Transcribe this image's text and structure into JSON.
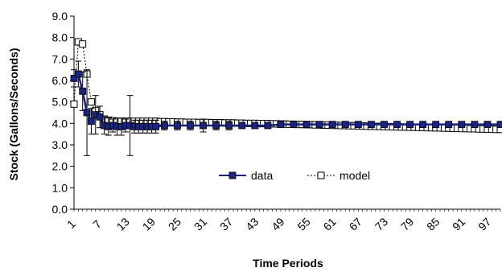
{
  "chart_data": {
    "type": "line",
    "title": "",
    "xlabel": "Time Periods",
    "ylabel": "Stock (Gallons/Seconds)",
    "ylim": [
      0,
      9
    ],
    "y_ticks": [
      "0.0",
      "1.0",
      "2.0",
      "3.0",
      "4.0",
      "5.0",
      "6.0",
      "7.0",
      "8.0",
      "9.0"
    ],
    "x_tick_labels": [
      "1",
      "7",
      "13",
      "19",
      "25",
      "31",
      "37",
      "43",
      "49",
      "55",
      "61",
      "67",
      "73",
      "79",
      "85",
      "91",
      "97"
    ],
    "x_range": [
      1,
      100
    ],
    "grid": false,
    "legend_position": "center",
    "series": [
      {
        "name": "data",
        "color": "#1a237e",
        "marker": "filled-square",
        "line_style": "solid",
        "x": [
          1,
          2,
          3,
          4,
          5,
          6,
          7,
          8,
          9,
          10,
          11,
          12,
          13,
          14,
          15,
          16,
          17,
          18,
          19,
          20,
          22,
          25,
          28,
          31,
          34,
          37,
          40,
          43,
          46,
          49,
          52,
          55,
          58,
          61,
          64,
          67,
          70,
          73,
          76,
          79,
          82,
          85,
          88,
          91,
          94,
          97,
          100
        ],
        "values": [
          6.1,
          6.3,
          5.5,
          4.5,
          4.1,
          4.4,
          4.3,
          3.9,
          3.85,
          3.9,
          3.85,
          3.85,
          3.9,
          3.9,
          3.85,
          3.85,
          3.85,
          3.85,
          3.85,
          3.85,
          3.9,
          3.9,
          3.9,
          3.9,
          3.9,
          3.9,
          3.9,
          3.9,
          3.9,
          3.95,
          3.95,
          3.95,
          3.95,
          3.95,
          3.95,
          3.95,
          3.95,
          3.95,
          3.95,
          3.95,
          3.95,
          3.95,
          3.95,
          3.95,
          3.95,
          3.95,
          3.95
        ],
        "error": [
          0.4,
          0.6,
          0.9,
          2.0,
          0.6,
          0.9,
          0.5,
          0.4,
          0.4,
          0.3,
          0.4,
          0.4,
          0.3,
          1.4,
          0.3,
          0.3,
          0.3,
          0.3,
          0.3,
          0.3,
          0.2,
          0.2,
          0.2,
          0.3,
          0.2,
          0.2,
          0.1,
          0.1,
          0.1,
          0.1,
          0.1,
          0.05,
          0.05,
          0.05,
          0.05,
          0.05,
          0.05,
          0.05,
          0.05,
          0.05,
          0.05,
          0.05,
          0.05,
          0.05,
          0.05,
          0.05,
          0.05
        ]
      },
      {
        "name": "model",
        "color": "#000000",
        "marker": "open-square",
        "line_style": "dashed",
        "x": [
          1,
          2,
          3,
          4,
          5,
          6,
          7,
          8,
          9,
          10,
          11,
          12,
          13,
          14,
          15,
          16,
          17,
          18,
          19,
          20,
          21,
          22,
          23,
          24,
          25,
          26,
          27,
          28,
          29,
          30,
          31,
          32,
          33,
          34,
          35,
          36,
          37,
          38,
          39,
          40,
          41,
          42,
          43,
          44,
          45,
          46,
          47,
          48,
          49,
          50,
          51,
          52,
          53,
          54,
          55,
          56,
          57,
          58,
          59,
          60,
          61,
          62,
          63,
          64,
          65,
          66,
          67,
          68,
          69,
          70,
          71,
          72,
          73,
          74,
          75,
          76,
          77,
          78,
          79,
          80,
          81,
          82,
          83,
          84,
          85,
          86,
          87,
          88,
          89,
          90,
          91,
          92,
          93,
          94,
          95,
          96,
          97,
          98,
          99,
          100
        ],
        "values": [
          4.9,
          7.8,
          7.7,
          6.3,
          5.0,
          4.6,
          4.4,
          4.2,
          4.15,
          4.12,
          4.1,
          4.1,
          4.1,
          4.1,
          4.1,
          4.1,
          4.1,
          4.1,
          4.1,
          4.1,
          4.08,
          4.08,
          4.07,
          4.07,
          4.06,
          4.06,
          4.05,
          4.05,
          4.05,
          4.04,
          4.04,
          4.04,
          4.03,
          4.03,
          4.03,
          4.02,
          4.02,
          4.02,
          4.01,
          4.01,
          4.0,
          4.0,
          4.0,
          3.99,
          3.99,
          3.99,
          3.98,
          3.98,
          3.97,
          3.97,
          3.96,
          3.96,
          3.95,
          3.95,
          3.94,
          3.94,
          3.93,
          3.93,
          3.92,
          3.92,
          3.91,
          3.91,
          3.9,
          3.9,
          3.89,
          3.89,
          3.88,
          3.88,
          3.87,
          3.87,
          3.86,
          3.86,
          3.85,
          3.85,
          3.84,
          3.84,
          3.83,
          3.83,
          3.82,
          3.82,
          3.81,
          3.81,
          3.8,
          3.8,
          3.79,
          3.79,
          3.78,
          3.78,
          3.77,
          3.77,
          3.76,
          3.76,
          3.75,
          3.75,
          3.74,
          3.74,
          3.73,
          3.73,
          3.72,
          3.72
        ]
      }
    ]
  }
}
